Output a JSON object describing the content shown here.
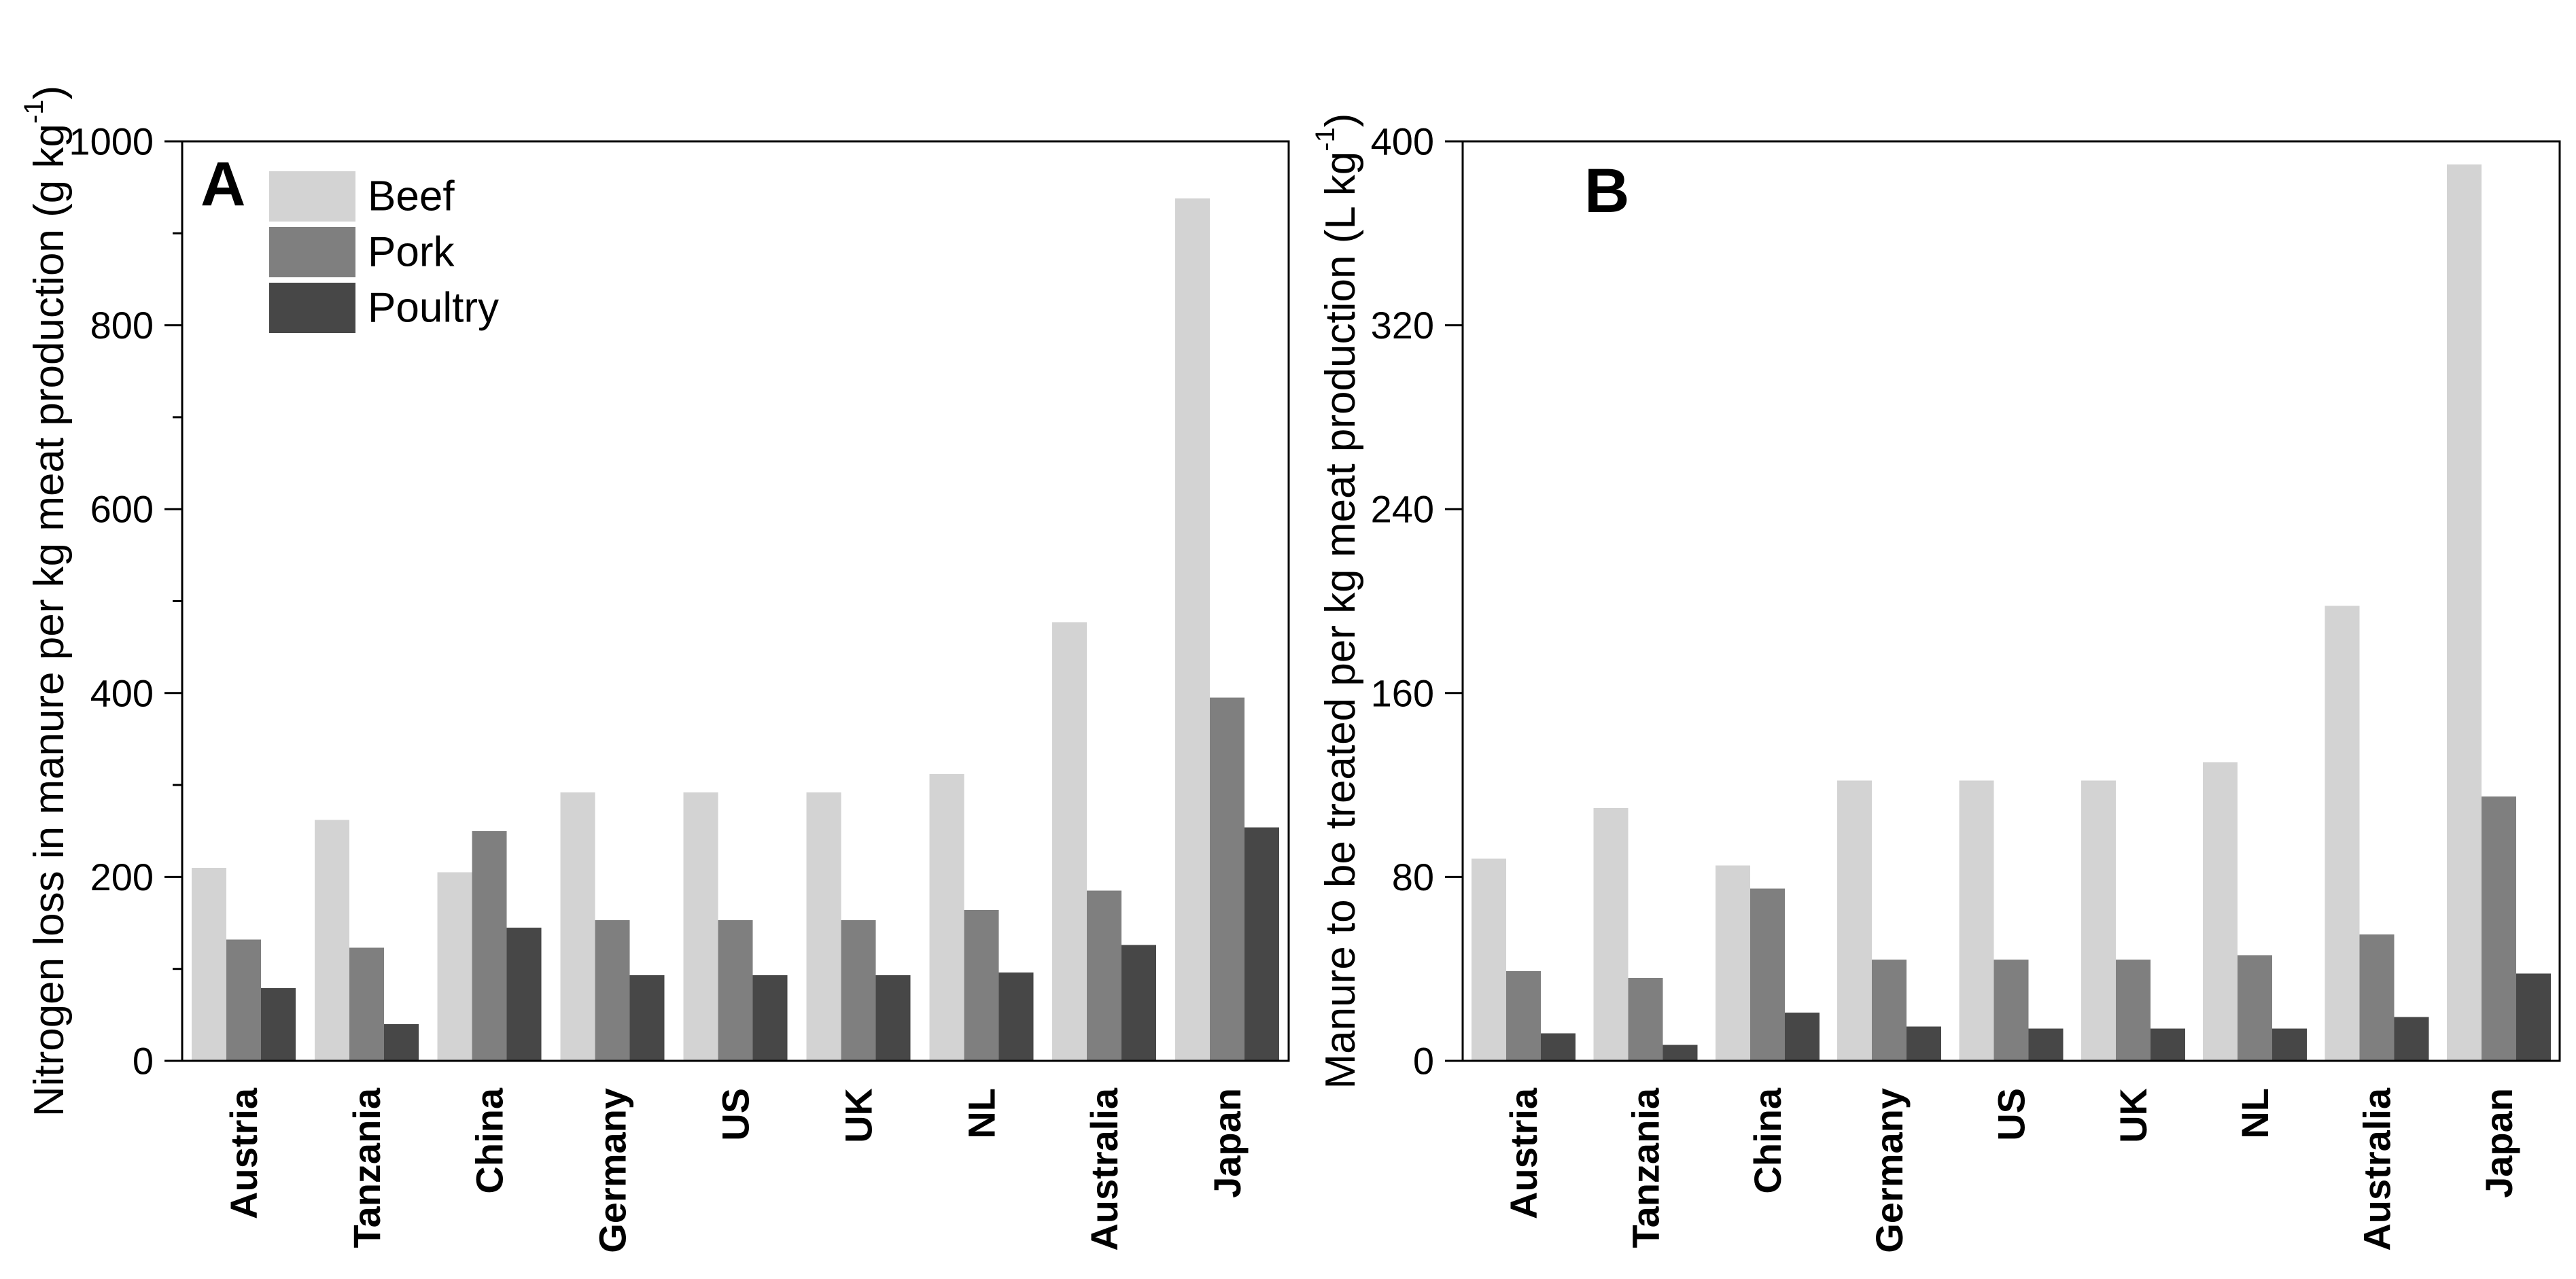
{
  "figure": {
    "background": "#ffffff",
    "axis_color": "#000000",
    "series_colors": {
      "Beef": "#d3d3d3",
      "Pork": "#7f7f7f",
      "Poultry": "#474747"
    },
    "legend": {
      "items": [
        "Beef",
        "Pork",
        "Poultry"
      ],
      "position": "upper-left",
      "panel": "A"
    }
  },
  "chart_data": [
    {
      "type": "bar",
      "panel_label": "A",
      "ylabel": "Nitrogen loss in manure per kg meat production (g kg⁻¹)",
      "ylabel_parts": {
        "pre": "Nitrogen loss in manure per kg meat production (g kg",
        "sup": "-1",
        "post": ")"
      },
      "xlabel": "",
      "ylim": [
        0,
        1000
      ],
      "yticks_major": [
        0,
        200,
        400,
        600,
        800,
        1000
      ],
      "yticks_minor": [
        100,
        300,
        500,
        700,
        900
      ],
      "grid": false,
      "legend_visible": true,
      "categories": [
        "Austria",
        "Tanzania",
        "China",
        "Germany",
        "US",
        "UK",
        "NL",
        "Australia",
        "Japan"
      ],
      "series": [
        {
          "name": "Beef",
          "values": [
            210,
            262,
            205,
            292,
            292,
            292,
            312,
            477,
            938
          ]
        },
        {
          "name": "Pork",
          "values": [
            132,
            123,
            250,
            153,
            153,
            153,
            164,
            185,
            395
          ]
        },
        {
          "name": "Poultry",
          "values": [
            79,
            40,
            145,
            93,
            93,
            93,
            96,
            126,
            254
          ]
        }
      ]
    },
    {
      "type": "bar",
      "panel_label": "B",
      "ylabel": "Manure to be treated per kg meat production (L kg⁻¹)",
      "ylabel_parts": {
        "pre": "Manure to be treated per kg meat production (L kg",
        "sup": "-1",
        "post": ")"
      },
      "xlabel": "",
      "ylim": [
        0,
        400
      ],
      "yticks_major": [
        0,
        80,
        160,
        240,
        320,
        400
      ],
      "yticks_minor": [],
      "grid": false,
      "legend_visible": false,
      "categories": [
        "Austria",
        "Tanzania",
        "China",
        "Germany",
        "US",
        "UK",
        "NL",
        "Australia",
        "Japan"
      ],
      "series": [
        {
          "name": "Beef",
          "values": [
            88,
            110,
            85,
            122,
            122,
            122,
            130,
            198,
            390
          ]
        },
        {
          "name": "Pork",
          "values": [
            39,
            36,
            75,
            44,
            44,
            44,
            46,
            55,
            115
          ]
        },
        {
          "name": "Poultry",
          "values": [
            12,
            7,
            21,
            15,
            14,
            14,
            14,
            19,
            38
          ]
        }
      ]
    }
  ]
}
